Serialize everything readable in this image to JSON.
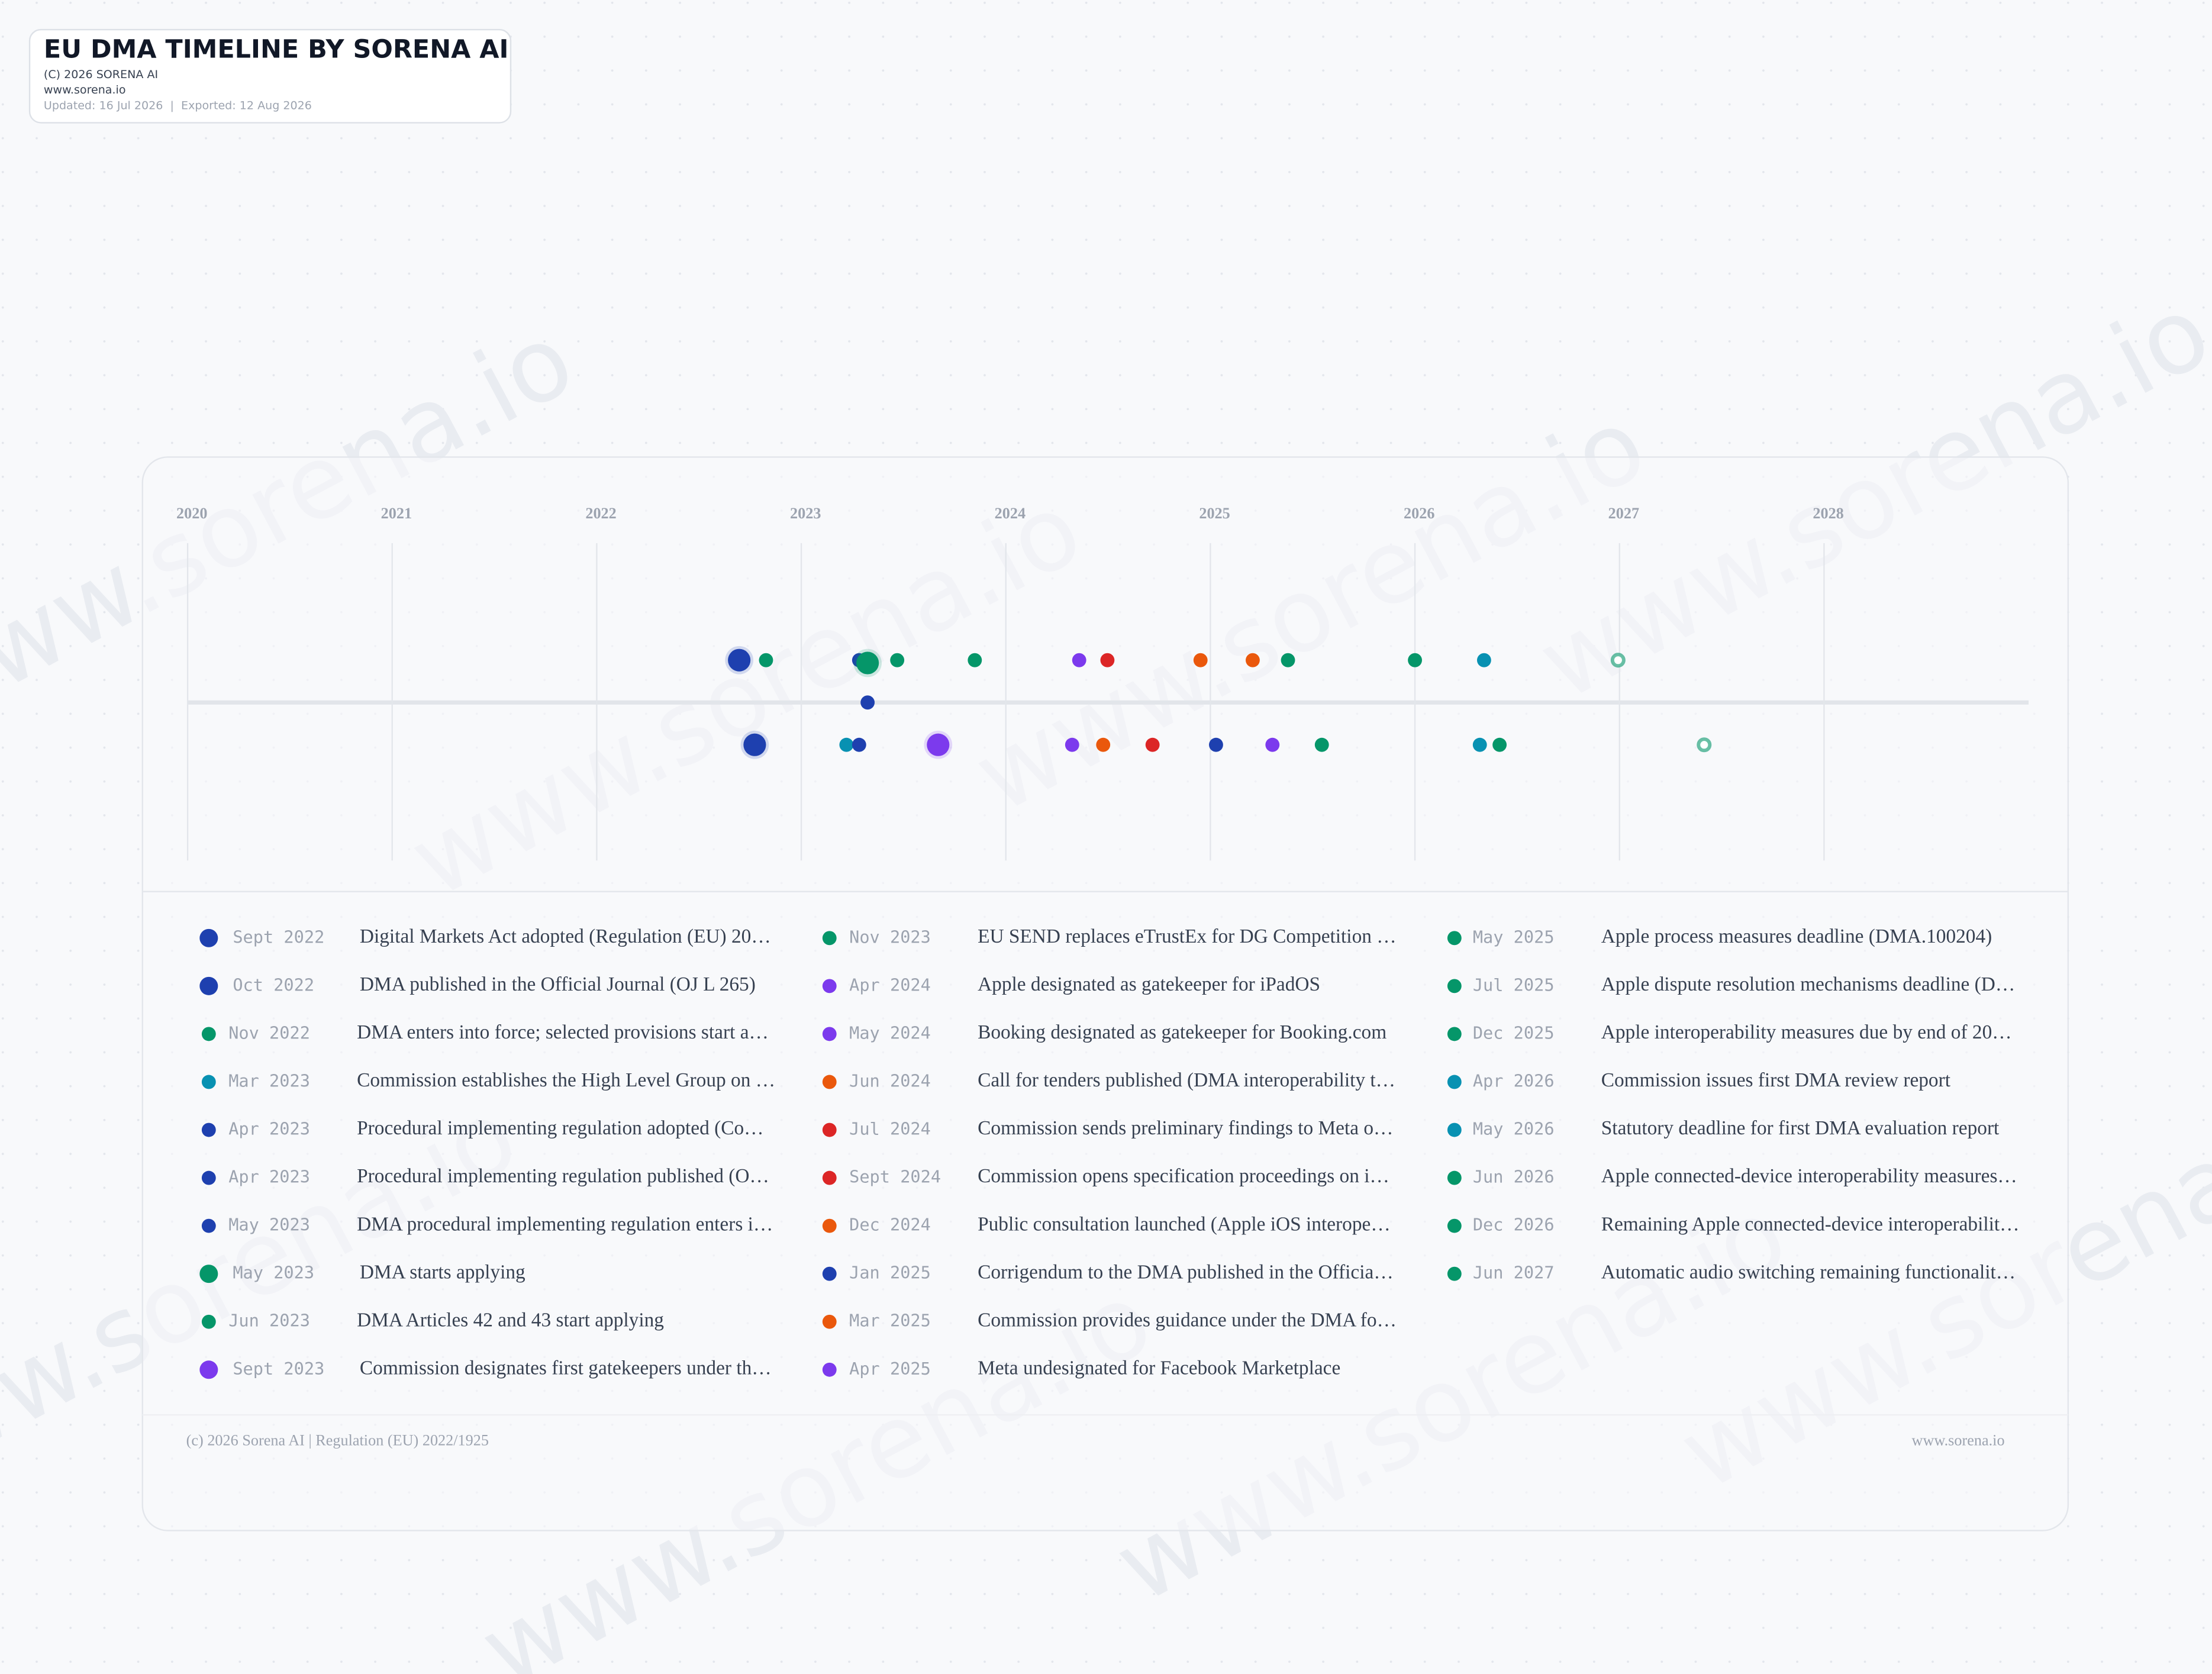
{
  "header": {
    "title": "EU DMA TIMELINE BY SORENA AI",
    "copyright": "(C) 2026 SORENA AI",
    "website": "www.sorena.io",
    "updated": "Updated: 16 Jul 2026  |  Exported: 12 Aug 2026"
  },
  "watermark": "www.sorena.io",
  "axis": {
    "years": [
      "2020",
      "2021",
      "2022",
      "2023",
      "2024",
      "2025",
      "2026",
      "2027",
      "2028"
    ]
  },
  "events": [
    {
      "date": "Sept 2022",
      "label": "Digital Markets Act adopted (Regulation (EU) 20…",
      "color": "#1e40af"
    },
    {
      "date": "Oct 2022",
      "label": "DMA published in the Official Journal (OJ L 265)",
      "color": "#1e40af"
    },
    {
      "date": "Nov 2022",
      "label": "DMA enters into force; selected provisions start a…",
      "color": "#059669"
    },
    {
      "date": "Mar 2023",
      "label": "Commission establishes the High Level Group on …",
      "color": "#0891b2"
    },
    {
      "date": "Apr 2023",
      "label": "Procedural implementing regulation adopted (Co…",
      "color": "#1e40af"
    },
    {
      "date": "Apr 2023",
      "label": "Procedural implementing regulation published (O…",
      "color": "#1e40af"
    },
    {
      "date": "May 2023",
      "label": "DMA procedural implementing regulation enters i…",
      "color": "#1e40af"
    },
    {
      "date": "May 2023",
      "label": "DMA starts applying",
      "color": "#059669"
    },
    {
      "date": "Jun 2023",
      "label": "DMA Articles 42 and 43 start applying",
      "color": "#059669"
    },
    {
      "date": "Sept 2023",
      "label": "Commission designates first gatekeepers under th…",
      "color": "#7c3aed"
    },
    {
      "date": "Nov 2023",
      "label": "EU SEND replaces eTrustEx for DG Competition …",
      "color": "#059669"
    },
    {
      "date": "Apr 2024",
      "label": "Apple designated as gatekeeper for iPadOS",
      "color": "#7c3aed"
    },
    {
      "date": "May 2024",
      "label": "Booking designated as gatekeeper for Booking.com",
      "color": "#7c3aed"
    },
    {
      "date": "Jun 2024",
      "label": "Call for tenders published (DMA interoperability t…",
      "color": "#ea580c"
    },
    {
      "date": "Jul 2024",
      "label": "Commission sends preliminary findings to Meta o…",
      "color": "#dc2626"
    },
    {
      "date": "Sept 2024",
      "label": "Commission opens specification proceedings on i…",
      "color": "#dc2626"
    },
    {
      "date": "Dec 2024",
      "label": "Public consultation launched (Apple iOS interope…",
      "color": "#ea580c"
    },
    {
      "date": "Jan 2025",
      "label": "Corrigendum to the DMA published in the Officia…",
      "color": "#1e40af"
    },
    {
      "date": "Mar 2025",
      "label": "Commission provides guidance under the DMA fo…",
      "color": "#ea580c"
    },
    {
      "date": "Apr 2025",
      "label": "Meta undesignated for Facebook Marketplace",
      "color": "#7c3aed"
    },
    {
      "date": "May 2025",
      "label": "Apple process measures deadline (DMA.100204)",
      "color": "#059669"
    },
    {
      "date": "Jul 2025",
      "label": "Apple dispute resolution mechanisms deadline (D…",
      "color": "#059669"
    },
    {
      "date": "Dec 2025",
      "label": "Apple interoperability measures due by end of 20…",
      "color": "#059669"
    },
    {
      "date": "Apr 2026",
      "label": "Commission issues first DMA review report",
      "color": "#0891b2"
    },
    {
      "date": "May 2026",
      "label": "Statutory deadline for first DMA evaluation report",
      "color": "#0891b2"
    },
    {
      "date": "Jun 2026",
      "label": "Apple connected-device interoperability measures…",
      "color": "#059669"
    },
    {
      "date": "Dec 2026",
      "label": "Remaining Apple connected-device interoperabilit…",
      "color": "#059669"
    },
    {
      "date": "Jun 2027",
      "label": "Automatic audio switching remaining functionalit…",
      "color": "#059669"
    }
  ],
  "footer": {
    "left": "(c) 2026 Sorena AI | Regulation (EU) 2022/1925",
    "right": "www.sorena.io"
  }
}
